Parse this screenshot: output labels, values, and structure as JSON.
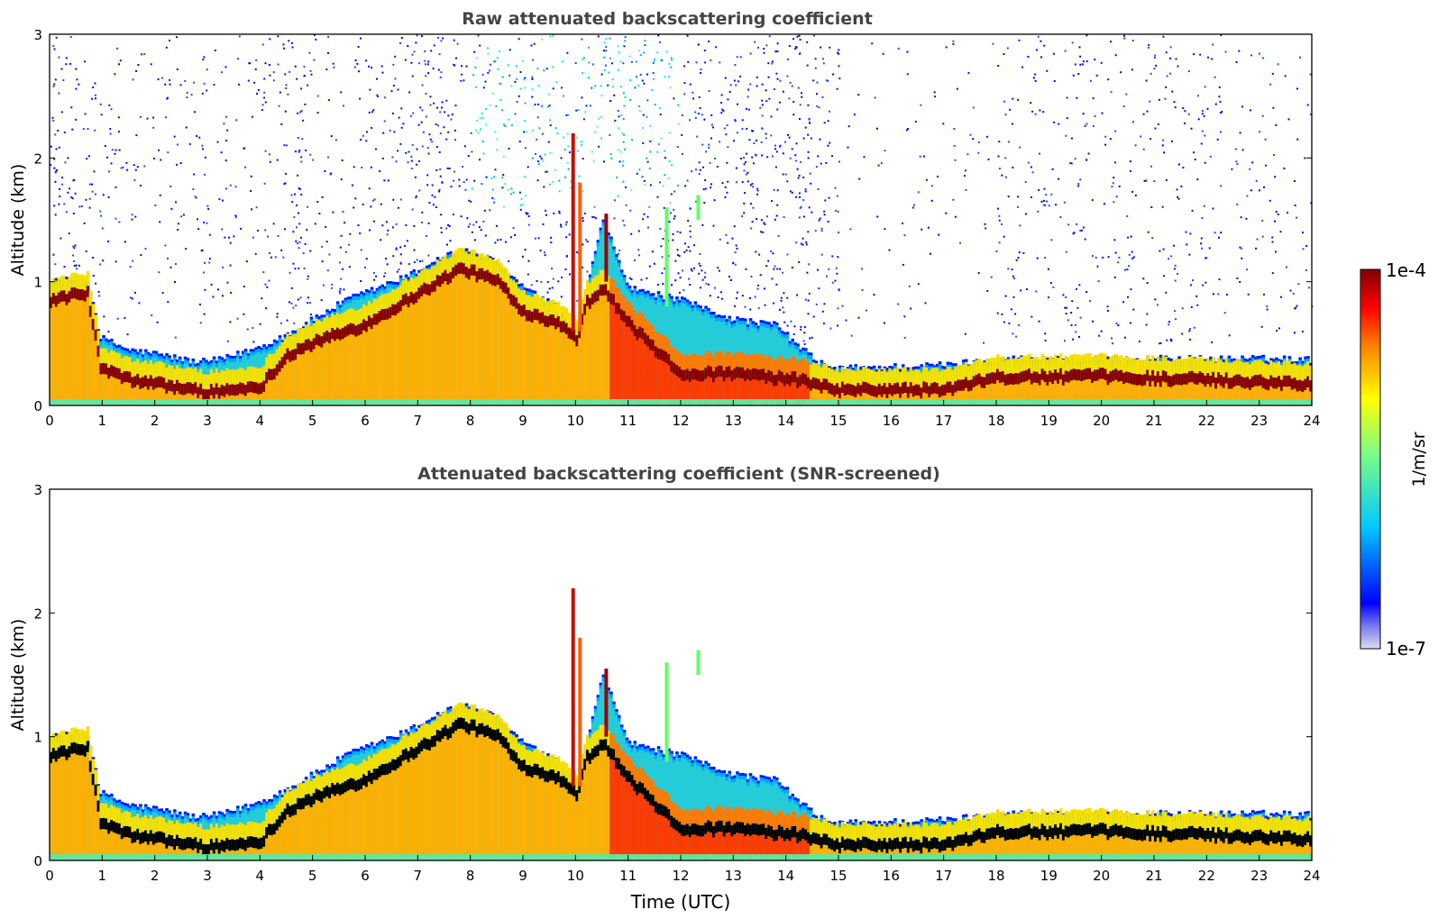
{
  "chart_data": [
    {
      "type": "heatmap",
      "title": "Raw attenuated backscattering coefficient",
      "xlabel": "",
      "ylabel": "Altitude (km)",
      "xlim": [
        0,
        24
      ],
      "ylim": [
        0,
        3
      ],
      "x_ticks": [
        "0",
        "1",
        "2",
        "3",
        "4",
        "5",
        "6",
        "7",
        "8",
        "9",
        "10",
        "11",
        "12",
        "13",
        "14",
        "15",
        "16",
        "17",
        "18",
        "19",
        "20",
        "21",
        "22",
        "23",
        "24"
      ],
      "y_ticks": [
        "0",
        "1",
        "2",
        "3"
      ],
      "noise_mask": false,
      "layer_top_km": [
        {
          "t": 0,
          "h": 1.0
        },
        {
          "t": 0.7,
          "h": 1.03
        },
        {
          "t": 0.95,
          "h": 0.55
        },
        {
          "t": 1.5,
          "h": 0.45
        },
        {
          "t": 2,
          "h": 0.42
        },
        {
          "t": 2.8,
          "h": 0.35
        },
        {
          "t": 3.3,
          "h": 0.38
        },
        {
          "t": 4,
          "h": 0.48
        },
        {
          "t": 4.6,
          "h": 0.6
        },
        {
          "t": 5,
          "h": 0.7
        },
        {
          "t": 5.6,
          "h": 0.85
        },
        {
          "t": 6.2,
          "h": 0.95
        },
        {
          "t": 6.8,
          "h": 1.05
        },
        {
          "t": 7.5,
          "h": 1.22
        },
        {
          "t": 8,
          "h": 1.25
        },
        {
          "t": 8.5,
          "h": 1.15
        },
        {
          "t": 9,
          "h": 0.95
        },
        {
          "t": 9.6,
          "h": 0.8
        },
        {
          "t": 10,
          "h": 0.6
        },
        {
          "t": 10.5,
          "h": 1.5
        },
        {
          "t": 11,
          "h": 0.95
        },
        {
          "t": 12,
          "h": 0.85
        },
        {
          "t": 13,
          "h": 0.7
        },
        {
          "t": 13.8,
          "h": 0.65
        },
        {
          "t": 14.3,
          "h": 0.45
        },
        {
          "t": 14.8,
          "h": 0.3
        },
        {
          "t": 17,
          "h": 0.33
        },
        {
          "t": 18,
          "h": 0.38
        },
        {
          "t": 20,
          "h": 0.38
        },
        {
          "t": 22,
          "h": 0.38
        },
        {
          "t": 23.5,
          "h": 0.38
        },
        {
          "t": 24,
          "h": 0.37
        }
      ],
      "strong_layer_km": [
        {
          "t": 0,
          "h": 0.9
        },
        {
          "t": 0.7,
          "h": 0.95
        },
        {
          "t": 0.95,
          "h": 0.35
        },
        {
          "t": 1.5,
          "h": 0.25
        },
        {
          "t": 2,
          "h": 0.22
        },
        {
          "t": 3,
          "h": 0.15
        },
        {
          "t": 4,
          "h": 0.2
        },
        {
          "t": 4.5,
          "h": 0.45
        },
        {
          "t": 5,
          "h": 0.55
        },
        {
          "t": 6,
          "h": 0.7
        },
        {
          "t": 7,
          "h": 0.95
        },
        {
          "t": 7.8,
          "h": 1.15
        },
        {
          "t": 8.5,
          "h": 1.05
        },
        {
          "t": 9,
          "h": 0.8
        },
        {
          "t": 9.8,
          "h": 0.7
        },
        {
          "t": 10.5,
          "h": 1.0
        },
        {
          "t": 11,
          "h": 0.7
        },
        {
          "t": 12,
          "h": 0.3
        },
        {
          "t": 13,
          "h": 0.3
        },
        {
          "t": 14.2,
          "h": 0.25
        },
        {
          "t": 15,
          "h": 0.17
        },
        {
          "t": 17,
          "h": 0.17
        },
        {
          "t": 18,
          "h": 0.27
        },
        {
          "t": 20,
          "h": 0.28
        },
        {
          "t": 22,
          "h": 0.25
        },
        {
          "t": 24,
          "h": 0.22
        }
      ]
    },
    {
      "type": "heatmap",
      "title": "Attenuated backscattering coefficient (SNR-screened)",
      "xlabel": "Time (UTC)",
      "ylabel": "Altitude (km)",
      "xlim": [
        0,
        24
      ],
      "ylim": [
        0,
        3
      ],
      "x_ticks": [
        "0",
        "1",
        "2",
        "3",
        "4",
        "5",
        "6",
        "7",
        "8",
        "9",
        "10",
        "11",
        "12",
        "13",
        "14",
        "15",
        "16",
        "17",
        "18",
        "19",
        "20",
        "21",
        "22",
        "23",
        "24"
      ],
      "y_ticks": [
        "0",
        "1",
        "2",
        "3"
      ],
      "noise_mask": true
    }
  ],
  "colorbar": {
    "label": "1/m/sr",
    "max_label": "1e-4",
    "min_label": "1e-7",
    "scale": "log",
    "range": [
      1e-07,
      0.0001
    ],
    "colormap": "jet",
    "colors": [
      "#dcdcf0",
      "#0000ff",
      "#00c8ff",
      "#7fff7f",
      "#ffff00",
      "#ff7f00",
      "#ff0000",
      "#7f0000"
    ]
  }
}
